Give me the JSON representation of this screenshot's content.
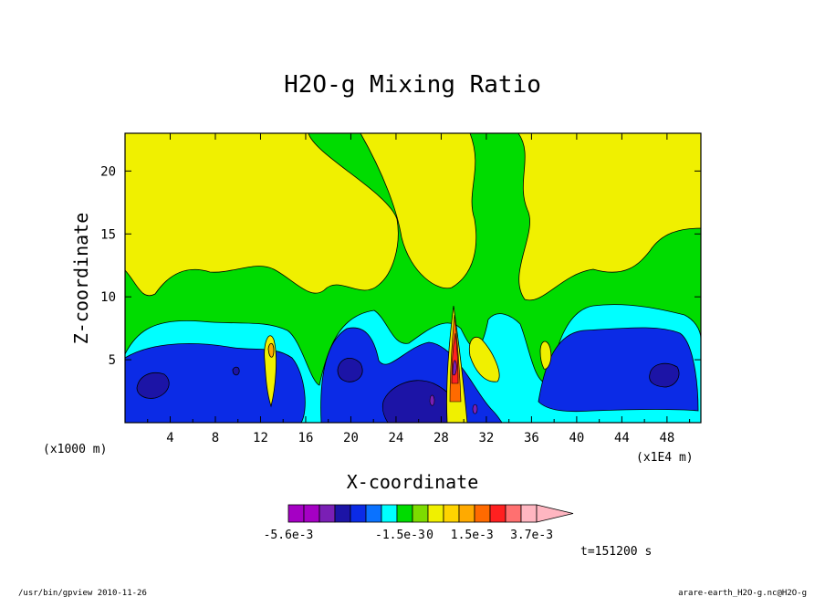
{
  "chart_data": {
    "type": "heatmap",
    "title": "H2O-g Mixing Ratio",
    "xlabel": "X-coordinate",
    "ylabel": "Z-coordinate",
    "x_unit_left": "(x1000 m)",
    "x_unit_right": "(x1E4 m)",
    "xlim": [
      0,
      51
    ],
    "ylim": [
      0,
      23
    ],
    "x_ticks": [
      4,
      8,
      12,
      16,
      20,
      24,
      28,
      32,
      36,
      40,
      44,
      48
    ],
    "y_ticks": [
      5,
      10,
      15,
      20
    ],
    "x_tick_labels": [
      "4",
      "8",
      "12",
      "16",
      "20",
      "24",
      "28",
      "32",
      "36",
      "40",
      "44",
      "48"
    ],
    "y_tick_labels": [
      "5",
      "10",
      "15",
      "20"
    ],
    "colorbar": {
      "colors": [
        "#a500c4",
        "#a500c4",
        "#7a1fb5",
        "#1c14a6",
        "#0b2be6",
        "#0a72ff",
        "#00ffff",
        "#00dc00",
        "#7ddc00",
        "#f0f000",
        "#ffd400",
        "#ffaa00",
        "#ff6a00",
        "#ff2020",
        "#ff7070",
        "#ffb6c1"
      ],
      "labels": [
        "-5.6e-3",
        "-1.5e-3",
        "0",
        "1.5e-3",
        "3.7e-3"
      ],
      "label_positions": [
        0,
        0.45,
        0.57,
        0.74,
        0.98
      ]
    },
    "background_bands": [
      {
        "name": "deep-blue-band",
        "color": "#1c14a6"
      },
      {
        "name": "blue-band",
        "color": "#0b2be6"
      },
      {
        "name": "cyan-band",
        "color": "#00ffff"
      },
      {
        "name": "green-band",
        "color": "#00dc00"
      },
      {
        "name": "yellow-band",
        "color": "#f0f000"
      }
    ],
    "time_label": "t=151200 s"
  },
  "footer": {
    "left": "/usr/bin/gpview   2010-11-26",
    "right": "arare-earth_H2O-g.nc@H2O-g"
  }
}
